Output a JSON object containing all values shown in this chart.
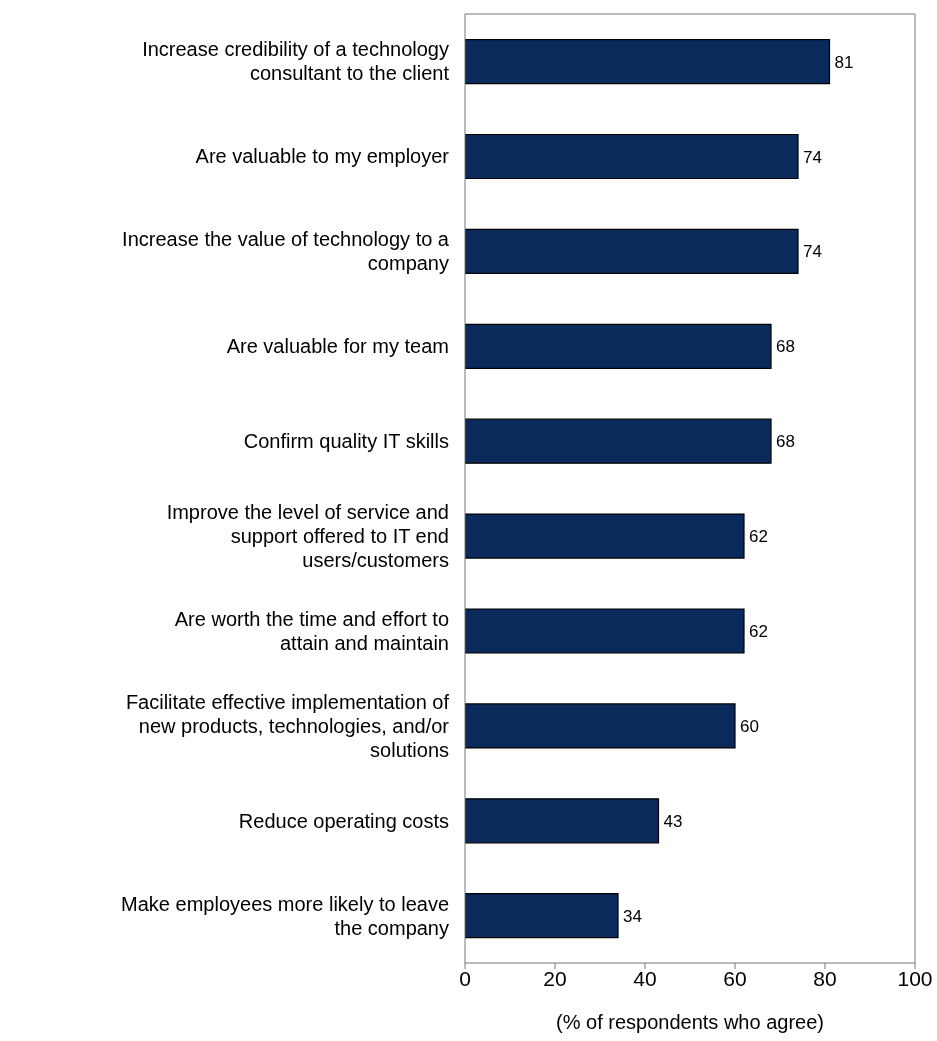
{
  "chart_data": {
    "type": "bar",
    "orientation": "horizontal",
    "categories": [
      "Increase credibility of a technology consultant to the client",
      "Are valuable to my employer",
      "Increase the value of technology to a company",
      "Are valuable for my team",
      "Confirm quality IT skills",
      "Improve the level of service and support offered to IT end users/customers",
      "Are worth the time and effort to attain and maintain",
      "Facilitate effective implementation of new products, technologies, and/or solutions",
      "Reduce operating costs",
      "Make employees more likely to leave the company"
    ],
    "values": [
      81,
      74,
      74,
      68,
      68,
      62,
      62,
      60,
      43,
      34
    ],
    "color": "#0b2a5c",
    "xlim": [
      0,
      100
    ],
    "xticks": [
      0,
      20,
      40,
      60,
      80,
      100
    ],
    "xlabel": "(% of respondents who agree)",
    "data_labels": true,
    "grid": false
  }
}
